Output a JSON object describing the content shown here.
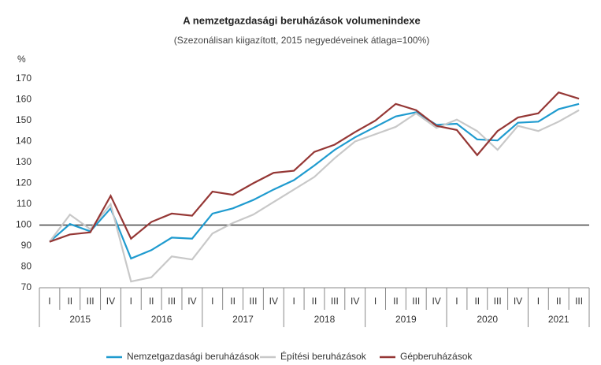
{
  "chart_data": {
    "type": "line",
    "title": "A nemzetgazdasági beruházások volumenindexe",
    "subtitle": "(Szezonálisan kiigazított, 2015 negyedéveinek átlaga=100%)",
    "y_unit": "%",
    "categories": [
      "I",
      "II",
      "III",
      "IV",
      "I",
      "II",
      "III",
      "IV",
      "I",
      "II",
      "III",
      "IV",
      "I",
      "II",
      "III",
      "IV",
      "I",
      "II",
      "III",
      "IV",
      "I",
      "II",
      "III",
      "IV",
      "I",
      "II",
      "III"
    ],
    "years": [
      "2015",
      "2016",
      "2017",
      "2018",
      "2019",
      "2020",
      "2021"
    ],
    "series": [
      {
        "name": "Nemzetgazdasági beruházások",
        "color": "#1f9bcf",
        "values": [
          92,
          100.5,
          97,
          108,
          84,
          88,
          94,
          93.5,
          105.5,
          108,
          112,
          117,
          121.5,
          128.5,
          136,
          142,
          147,
          152,
          154,
          148,
          148.5,
          141,
          140.5,
          149,
          149.5,
          155.5,
          158
        ]
      },
      {
        "name": "Építési beruházások",
        "color": "#c8c8c8",
        "values": [
          92,
          105,
          98,
          110,
          73,
          75,
          85,
          83.5,
          96,
          101,
          105,
          111,
          117,
          123,
          132,
          140,
          143.5,
          147,
          153.5,
          146.5,
          150.5,
          145,
          136,
          147.5,
          145,
          149.5,
          155
        ]
      },
      {
        "name": "Gépberuházások",
        "color": "#953735",
        "values": [
          92,
          95.5,
          96.5,
          114,
          93.5,
          101.5,
          105.5,
          104.5,
          116,
          114.5,
          120,
          125,
          126,
          135,
          138.5,
          144.5,
          150,
          158,
          155,
          147.5,
          145.5,
          133.5,
          145,
          151.5,
          153.5,
          163.5,
          160.5
        ]
      }
    ],
    "ylim": [
      70,
      170
    ],
    "yticks": [
      70,
      80,
      90,
      100,
      110,
      120,
      130,
      140,
      150,
      160,
      170
    ],
    "reference_line": 100,
    "grid": false,
    "legend": "bottom"
  }
}
